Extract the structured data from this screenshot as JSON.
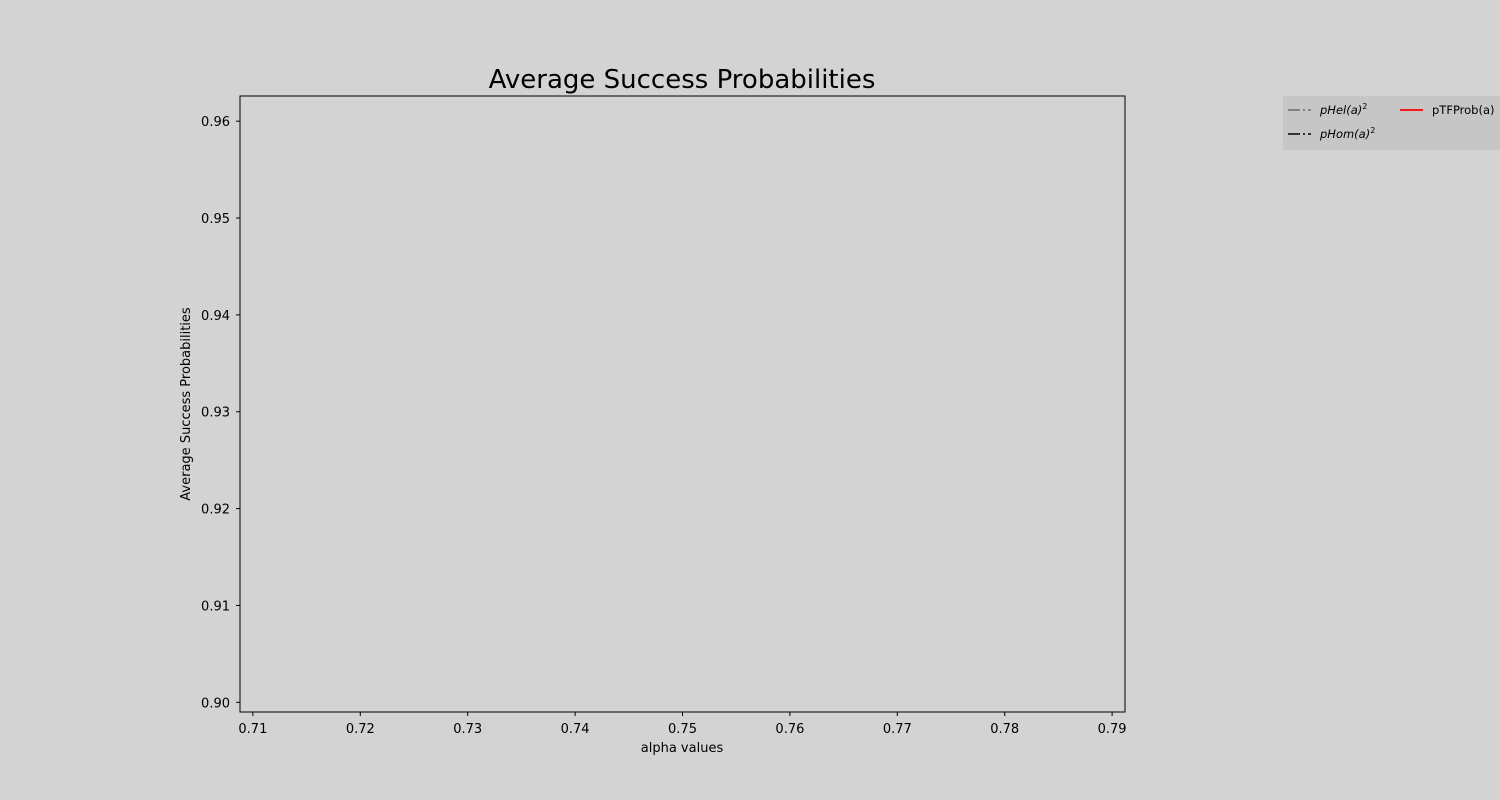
{
  "chart_data": {
    "type": "line",
    "title": "Average Success Probabilities",
    "xlabel": "alpha values",
    "ylabel": "Average Success Probabilities",
    "xlim": [
      0.7088,
      0.7912
    ],
    "ylim": [
      0.899,
      0.9626
    ],
    "xticks": [
      0.71,
      0.72,
      0.73,
      0.74,
      0.75,
      0.76,
      0.77,
      0.78,
      0.79
    ],
    "xtick_labels": [
      "0.71",
      "0.72",
      "0.73",
      "0.74",
      "0.75",
      "0.76",
      "0.77",
      "0.78",
      "0.79"
    ],
    "yticks": [
      0.9,
      0.91,
      0.92,
      0.93,
      0.94,
      0.95,
      0.96
    ],
    "ytick_labels": [
      "0.90",
      "0.91",
      "0.92",
      "0.93",
      "0.94",
      "0.95",
      "0.96"
    ],
    "grid": false,
    "legend_position": "top-right, outside plot area",
    "series": [
      {
        "name": "pHel(a)",
        "superscript": "2",
        "color": "#696969",
        "style": "dash-dot",
        "italic": true,
        "points": []
      },
      {
        "name": "pHom(a)",
        "superscript": "2",
        "color": "#000000",
        "style": "dash-dot",
        "italic": true,
        "points": []
      },
      {
        "name": "pTFProb(a)",
        "superscript": "",
        "color": "#ff0000",
        "style": "solid",
        "italic": false,
        "points": []
      }
    ]
  },
  "colors": {
    "background": "#d3d3d3",
    "legend_background": "#c6c6c6",
    "axes_frame": "#000000"
  }
}
